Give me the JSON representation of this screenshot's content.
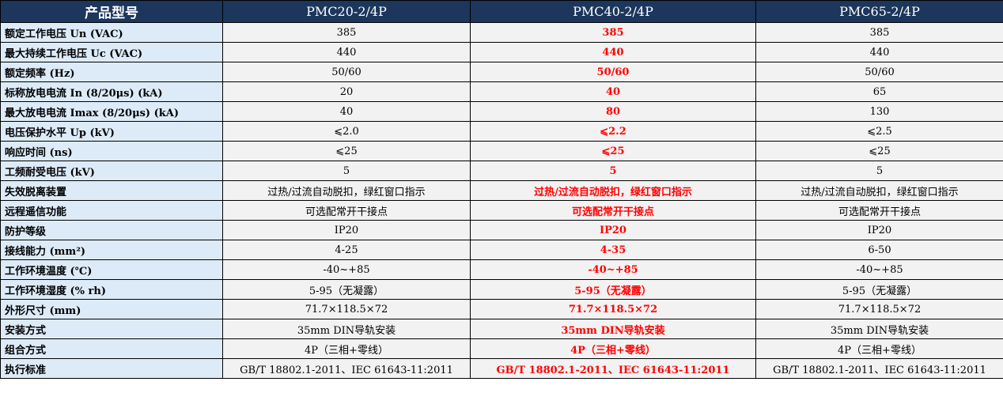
{
  "header": [
    "产品型号",
    "PMC20-2/4P",
    "PMC40-2/4P",
    "PMC65-2/4P"
  ],
  "highlight_color": "#ff0000",
  "rows": [
    {
      "label": "额定工作电压 Un (VAC)",
      "values": [
        "385",
        "385",
        "385"
      ]
    },
    {
      "label": "最大持续工作电压 Uc (VAC)",
      "values": [
        "440",
        "440",
        "440"
      ]
    },
    {
      "label": "额定频率 (Hz)",
      "values": [
        "50/60",
        "50/60",
        "50/60"
      ]
    },
    {
      "label": "标称放电电流 In (8/20μs) (kA)",
      "values": [
        "20",
        "40",
        "65"
      ]
    },
    {
      "label": "最大放电电流 Imax (8/20μs) (kA)",
      "values": [
        "40",
        "80",
        "130"
      ]
    },
    {
      "label": "电压保护水平 Up (kV)",
      "values": [
        "⩽2.0",
        "⩽2.2",
        "⩽2.5"
      ]
    },
    {
      "label": "响应时间 (ns)",
      "values": [
        "⩽25",
        "⩽25",
        "⩽25"
      ]
    },
    {
      "label": "工频耐受电压 (kV)",
      "values": [
        "5",
        "5",
        "5"
      ]
    },
    {
      "label": "失效脱离装置",
      "values": [
        "过热/过流自动脱扣，绿红窗口指示",
        "过热/过流自动脱扣，绿红窗口指示",
        "过热/过流自动脱扣，绿红窗口指示"
      ]
    },
    {
      "label": "远程遥信功能",
      "values": [
        "可选配常开干接点",
        "可选配常开干接点",
        "可选配常开干接点"
      ]
    },
    {
      "label": "防护等级",
      "values": [
        "IP20",
        "IP20",
        "IP20"
      ]
    },
    {
      "label": "接线能力 (mm²)",
      "values": [
        "4-25",
        "4-35",
        "6-50"
      ]
    },
    {
      "label": "工作环境温度 (℃)",
      "values": [
        "-40~+85",
        "-40~+85",
        "-40~+85"
      ]
    },
    {
      "label": "工作环境湿度 (% rh)",
      "values": [
        "5-95（无凝露）",
        "5-95（无凝露）",
        "5-95（无凝露）"
      ]
    },
    {
      "label": "外形尺寸 (mm)",
      "values": [
        "71.7×118.5×72",
        "71.7×118.5×72",
        "71.7×118.5×72"
      ]
    },
    {
      "label": "安装方式",
      "values": [
        "35mm DIN导轨安装",
        "35mm DIN导轨安装",
        "35mm DIN导轨安装"
      ]
    },
    {
      "label": "组合方式",
      "values": [
        "4P（三相+零线）",
        "4P（三相+零线）",
        "4P（三相+零线）"
      ]
    },
    {
      "label": "执行标准",
      "values": [
        "GB/T 18802.1-2011、IEC 61643-11:2011",
        "GB/T 18802.1-2011、IEC 61643-11:2011",
        "GB/T 18802.1-2011、IEC 61643-11:2011"
      ]
    }
  ]
}
